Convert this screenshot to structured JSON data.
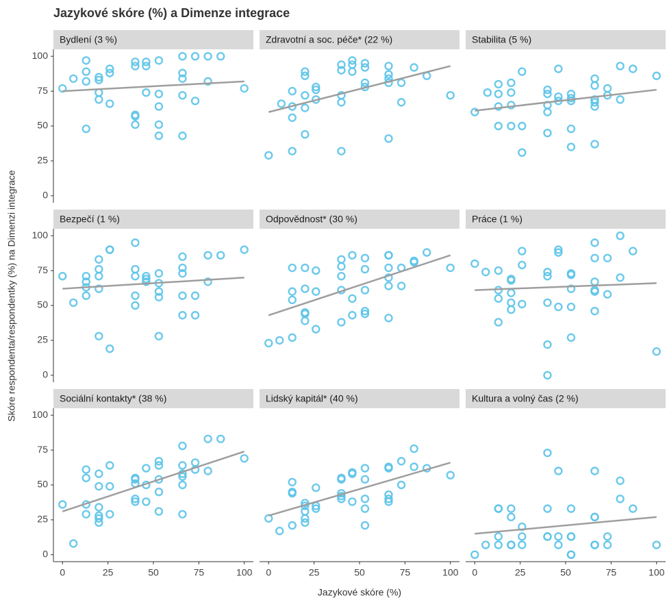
{
  "chart_data": {
    "type": "scatter",
    "title": "Jazykové skóre (%) a Dimenze integrace",
    "x_label": "Jazykové skóre (%)",
    "y_label": "Skóre respondenta/respondentky (%) na Dimenzi integrace",
    "xlim": [
      -5,
      105
    ],
    "ylim": [
      -5,
      105
    ],
    "xticks": [
      0,
      25,
      50,
      75,
      100
    ],
    "yticks": [
      0,
      25,
      50,
      75,
      100
    ],
    "color": "#5bc3e8",
    "trend_color": "#9e9e9e",
    "panels": [
      {
        "title": "Bydlení (3 %)",
        "x": [
          0,
          6,
          13,
          13,
          13,
          13,
          20,
          20,
          20,
          20,
          26,
          26,
          26,
          40,
          40,
          40,
          40,
          40,
          46,
          46,
          46,
          53,
          53,
          53,
          53,
          53,
          66,
          66,
          66,
          66,
          66,
          73,
          73,
          80,
          80,
          87,
          100
        ],
        "y": [
          77,
          84,
          97,
          89,
          82,
          48,
          85,
          83,
          74,
          69,
          91,
          88,
          66,
          96,
          93,
          58,
          57,
          51,
          96,
          93,
          74,
          97,
          73,
          64,
          51,
          43,
          100,
          88,
          84,
          72,
          43,
          100,
          68,
          100,
          82,
          100,
          77
        ],
        "trend": {
          "x": [
            0,
            100
          ],
          "y": [
            75,
            82
          ]
        }
      },
      {
        "title": "Zdravotní a soc. péče* (22 %)",
        "x": [
          0,
          7,
          13,
          13,
          13,
          13,
          20,
          20,
          20,
          20,
          20,
          26,
          26,
          26,
          40,
          40,
          40,
          40,
          40,
          46,
          46,
          46,
          53,
          53,
          53,
          53,
          66,
          66,
          66,
          66,
          66,
          73,
          73,
          80,
          87,
          100
        ],
        "y": [
          29,
          66,
          75,
          64,
          56,
          32,
          89,
          86,
          72,
          63,
          44,
          78,
          76,
          69,
          94,
          90,
          72,
          67,
          32,
          97,
          94,
          89,
          95,
          92,
          81,
          78,
          93,
          87,
          84,
          81,
          41,
          81,
          67,
          92,
          86,
          72
        ],
        "trend": {
          "x": [
            0,
            100
          ],
          "y": [
            60,
            93
          ]
        }
      },
      {
        "title": "Stabilita (5 %)",
        "x": [
          0,
          7,
          13,
          13,
          13,
          13,
          20,
          20,
          20,
          20,
          26,
          26,
          26,
          40,
          40,
          40,
          40,
          40,
          46,
          46,
          46,
          53,
          53,
          53,
          53,
          53,
          66,
          66,
          66,
          66,
          66,
          66,
          73,
          73,
          80,
          80,
          87,
          100
        ],
        "y": [
          60,
          74,
          80,
          73,
          64,
          50,
          81,
          74,
          65,
          50,
          89,
          50,
          31,
          76,
          73,
          65,
          60,
          45,
          91,
          71,
          68,
          73,
          70,
          68,
          48,
          35,
          84,
          79,
          69,
          67,
          64,
          37,
          77,
          72,
          93,
          69,
          91,
          86
        ],
        "trend": {
          "x": [
            0,
            100
          ],
          "y": [
            61,
            76
          ]
        }
      },
      {
        "title": "Bezpečí (1 %)",
        "x": [
          0,
          6,
          13,
          13,
          13,
          13,
          20,
          20,
          20,
          20,
          20,
          26,
          26,
          26,
          40,
          40,
          40,
          40,
          40,
          46,
          46,
          46,
          53,
          53,
          53,
          53,
          53,
          66,
          66,
          66,
          66,
          66,
          73,
          73,
          80,
          80,
          87,
          100
        ],
        "y": [
          71,
          52,
          71,
          67,
          63,
          57,
          83,
          76,
          71,
          62,
          28,
          90,
          90,
          19,
          95,
          76,
          71,
          57,
          50,
          71,
          69,
          67,
          73,
          66,
          60,
          56,
          28,
          85,
          77,
          73,
          57,
          43,
          57,
          43,
          86,
          67,
          86,
          90
        ],
        "trend": {
          "x": [
            0,
            100
          ],
          "y": [
            62,
            70
          ]
        }
      },
      {
        "title": "Odpovědnost* (30 %)",
        "x": [
          0,
          6,
          13,
          13,
          13,
          13,
          20,
          20,
          20,
          20,
          20,
          26,
          26,
          26,
          40,
          40,
          40,
          40,
          40,
          46,
          46,
          46,
          53,
          53,
          53,
          53,
          53,
          66,
          66,
          66,
          66,
          66,
          66,
          73,
          73,
          80,
          80,
          87,
          100
        ],
        "y": [
          23,
          25,
          77,
          60,
          54,
          27,
          77,
          62,
          45,
          44,
          39,
          75,
          60,
          33,
          83,
          78,
          71,
          61,
          38,
          86,
          55,
          43,
          84,
          76,
          61,
          46,
          44,
          86,
          86,
          77,
          70,
          64,
          41,
          77,
          64,
          82,
          81,
          88,
          77
        ],
        "trend": {
          "x": [
            0,
            100
          ],
          "y": [
            43,
            86
          ]
        }
      },
      {
        "title": "Práce (1 %)",
        "x": [
          0,
          6,
          13,
          13,
          13,
          13,
          20,
          20,
          20,
          20,
          20,
          26,
          26,
          26,
          40,
          40,
          40,
          40,
          40,
          46,
          46,
          46,
          53,
          53,
          53,
          53,
          53,
          66,
          66,
          66,
          66,
          66,
          66,
          73,
          73,
          80,
          80,
          87,
          100
        ],
        "y": [
          80,
          74,
          75,
          61,
          55,
          38,
          69,
          68,
          59,
          52,
          47,
          89,
          79,
          51,
          74,
          71,
          52,
          22,
          0,
          90,
          88,
          49,
          73,
          72,
          62,
          49,
          27,
          95,
          84,
          67,
          61,
          60,
          46,
          84,
          58,
          100,
          70,
          89,
          17
        ],
        "trend": {
          "x": [
            0,
            100
          ],
          "y": [
            61,
            66
          ]
        }
      },
      {
        "title": "Sociální kontakty* (38 %)",
        "x": [
          0,
          6,
          13,
          13,
          13,
          13,
          20,
          20,
          20,
          20,
          20,
          20,
          26,
          26,
          26,
          40,
          40,
          40,
          40,
          40,
          46,
          46,
          46,
          53,
          53,
          53,
          53,
          53,
          66,
          66,
          66,
          66,
          66,
          66,
          73,
          73,
          80,
          80,
          87,
          100
        ],
        "y": [
          36,
          8,
          61,
          55,
          36,
          29,
          58,
          49,
          34,
          28,
          26,
          23,
          64,
          49,
          29,
          55,
          54,
          51,
          40,
          38,
          62,
          50,
          38,
          67,
          64,
          54,
          45,
          31,
          78,
          64,
          58,
          56,
          50,
          29,
          66,
          61,
          83,
          60,
          83,
          69
        ],
        "trend": {
          "x": [
            0,
            100
          ],
          "y": [
            31,
            74
          ]
        }
      },
      {
        "title": "Lidský kapitál* (40 %)",
        "x": [
          0,
          6,
          13,
          13,
          13,
          13,
          20,
          20,
          20,
          20,
          20,
          26,
          26,
          26,
          40,
          40,
          40,
          40,
          40,
          46,
          46,
          46,
          53,
          53,
          53,
          53,
          53,
          66,
          66,
          66,
          66,
          66,
          73,
          73,
          80,
          80,
          87,
          100
        ],
        "y": [
          26,
          17,
          52,
          45,
          44,
          21,
          37,
          35,
          31,
          26,
          23,
          48,
          35,
          33,
          55,
          54,
          44,
          42,
          40,
          59,
          58,
          38,
          62,
          54,
          40,
          33,
          21,
          63,
          62,
          43,
          40,
          38,
          67,
          50,
          76,
          63,
          62,
          57
        ],
        "trend": {
          "x": [
            0,
            100
          ],
          "y": [
            28,
            66
          ]
        }
      },
      {
        "title": "Kultura a volný čas (2 %)",
        "x": [
          0,
          6,
          13,
          13,
          13,
          13,
          20,
          20,
          20,
          20,
          26,
          26,
          26,
          40,
          40,
          40,
          40,
          46,
          46,
          46,
          53,
          53,
          53,
          53,
          53,
          66,
          66,
          66,
          66,
          66,
          73,
          73,
          80,
          80,
          87,
          100
        ],
        "y": [
          0,
          7,
          33,
          33,
          13,
          7,
          33,
          27,
          7,
          7,
          20,
          13,
          7,
          73,
          33,
          13,
          13,
          60,
          13,
          7,
          33,
          13,
          13,
          0,
          0,
          60,
          27,
          27,
          7,
          7,
          13,
          7,
          53,
          40,
          33,
          7
        ],
        "trend": {
          "x": [
            0,
            100
          ],
          "y": [
            15,
            27
          ]
        }
      }
    ]
  }
}
